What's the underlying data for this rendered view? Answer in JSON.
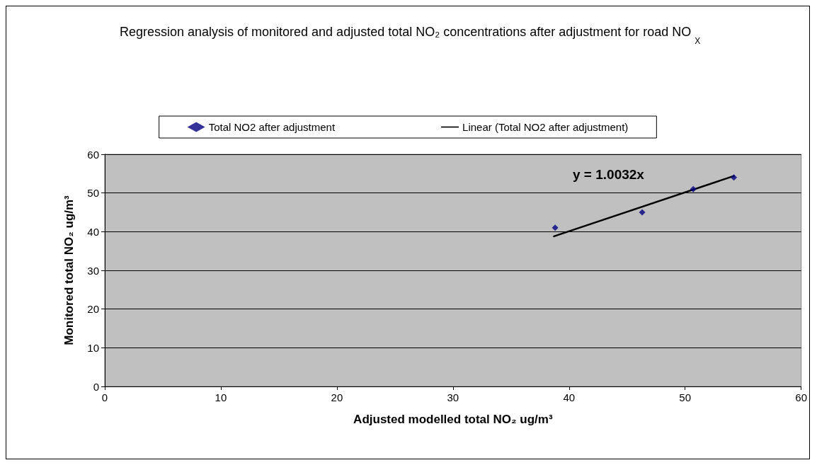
{
  "chart_data": {
    "type": "scatter",
    "title": "Regression analysis of monitored and adjusted total NO₂ concentrations after adjustment for road NO$_{X}$",
    "xlabel": "Adjusted modelled total NO₂ ug/m³",
    "ylabel": "Monitored total NO₂ ug/m³",
    "series": [
      {
        "name": "Total NO2 after adjustment",
        "type": "scatter",
        "color": "#000080",
        "marker": "diamond",
        "x": [
          38.8,
          46.3,
          50.7,
          54.2
        ],
        "values": [
          41,
          45,
          51,
          54
        ]
      },
      {
        "name": "Linear (Total NO2 after adjustment)",
        "type": "line",
        "color": "#000000",
        "marker": "none",
        "line_style": "solid",
        "x": [
          38.7,
          54.2
        ],
        "values": [
          38.8,
          54.4
        ]
      }
    ],
    "annotations": [
      "y = 1.0032x"
    ],
    "xlim": [
      0,
      60
    ],
    "xticks": [
      0,
      10,
      20,
      30,
      40,
      50,
      60
    ],
    "ylim": [
      0,
      60
    ],
    "yticks": [
      0,
      10,
      20,
      30,
      40,
      50,
      60
    ],
    "grid": "y",
    "legend": "top"
  }
}
